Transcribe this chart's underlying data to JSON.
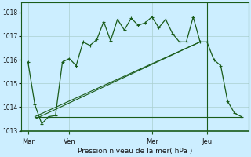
{
  "xlabel": "Pression niveau de la mer( hPa )",
  "bg_color": "#cceeff",
  "line_color": "#1a5c1a",
  "grid_color": "#aacfcf",
  "ylim": [
    1013.0,
    1018.4
  ],
  "yticks": [
    1013,
    1014,
    1015,
    1016,
    1017,
    1018
  ],
  "day_labels": [
    "Mar",
    "Ven",
    "Mer",
    "Jeu"
  ],
  "day_positions": [
    0,
    24,
    72,
    104
  ],
  "xlim": [
    -4,
    128
  ],
  "vline_x": 104,
  "series1_x": [
    0,
    4,
    8,
    12,
    16,
    20,
    24,
    28,
    32,
    36,
    40,
    44,
    48,
    52,
    56,
    60,
    64,
    68,
    72,
    76,
    80,
    84,
    88,
    92,
    96,
    100,
    104,
    108,
    112,
    116,
    120,
    124
  ],
  "series1_y": [
    1015.9,
    1014.1,
    1013.3,
    1013.6,
    1013.65,
    1015.9,
    1016.05,
    1015.75,
    1016.75,
    1016.6,
    1016.85,
    1017.6,
    1016.8,
    1017.7,
    1017.25,
    1017.75,
    1017.45,
    1017.55,
    1017.8,
    1017.35,
    1017.7,
    1017.1,
    1016.75,
    1016.75,
    1017.8,
    1016.75,
    1016.75,
    1016.0,
    1015.75,
    1014.25,
    1013.75,
    1013.6
  ],
  "trend1_x": [
    4,
    100
  ],
  "trend1_y": [
    1013.6,
    1016.75
  ],
  "trend2_x": [
    4,
    100
  ],
  "trend2_y": [
    1013.6,
    1016.75
  ],
  "trend3_x": [
    4,
    100
  ],
  "trend3_y": [
    1013.5,
    1016.75
  ],
  "flat_line_y": 1013.6,
  "flat_line_x": [
    4,
    124
  ]
}
